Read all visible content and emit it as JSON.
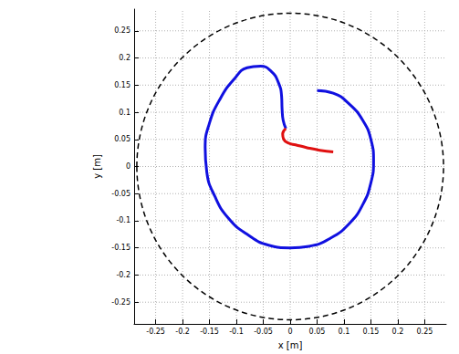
{
  "chart_data": {
    "type": "line",
    "x_label": "x [m]",
    "y_label": "y [m]",
    "xlim": [
      -0.29,
      0.29
    ],
    "ylim": [
      -0.29,
      0.29
    ],
    "xticks": [
      -0.25,
      -0.2,
      -0.15,
      -0.1,
      -0.05,
      0,
      0.05,
      0.1,
      0.15,
      0.2,
      0.25
    ],
    "yticks": [
      -0.25,
      -0.2,
      -0.15,
      -0.1,
      -0.05,
      0,
      0.05,
      0.1,
      0.15,
      0.2,
      0.25
    ],
    "grid": true,
    "series": [
      {
        "color": "#1010e0",
        "line_style": "solid",
        "x": [
          0.05,
          0.08,
          0.11,
          0.135,
          0.15,
          0.155,
          0.15,
          0.135,
          0.11,
          0.075,
          0.035,
          0,
          -0.04,
          -0.08,
          -0.115,
          -0.14,
          -0.155,
          -0.158,
          -0.15,
          -0.13,
          -0.105,
          -0.08,
          -0.055,
          -0.035,
          -0.022,
          -0.016,
          -0.015,
          -0.013,
          -0.008
        ],
        "values": [
          0.14,
          0.135,
          0.115,
          0.085,
          0.05,
          0.01,
          -0.03,
          -0.07,
          -0.105,
          -0.132,
          -0.147,
          -0.15,
          -0.145,
          -0.125,
          -0.095,
          -0.055,
          -0.01,
          0.035,
          0.08,
          0.125,
          0.16,
          0.182,
          0.185,
          0.175,
          0.155,
          0.13,
          0.105,
          0.085,
          0.07
        ]
      },
      {
        "color": "#e01010",
        "line_style": "solid",
        "x": [
          -0.008,
          -0.014,
          -0.012,
          -0.003,
          0.01,
          0.03,
          0.055,
          0.08
        ],
        "values": [
          0.07,
          0.06,
          0.05,
          0.043,
          0.04,
          0.035,
          0.03,
          0.027
        ]
      },
      {
        "type": "circle",
        "color": "#000000",
        "line_style": "dashed",
        "center": [
          0,
          0
        ],
        "radius": 0.285
      }
    ]
  }
}
